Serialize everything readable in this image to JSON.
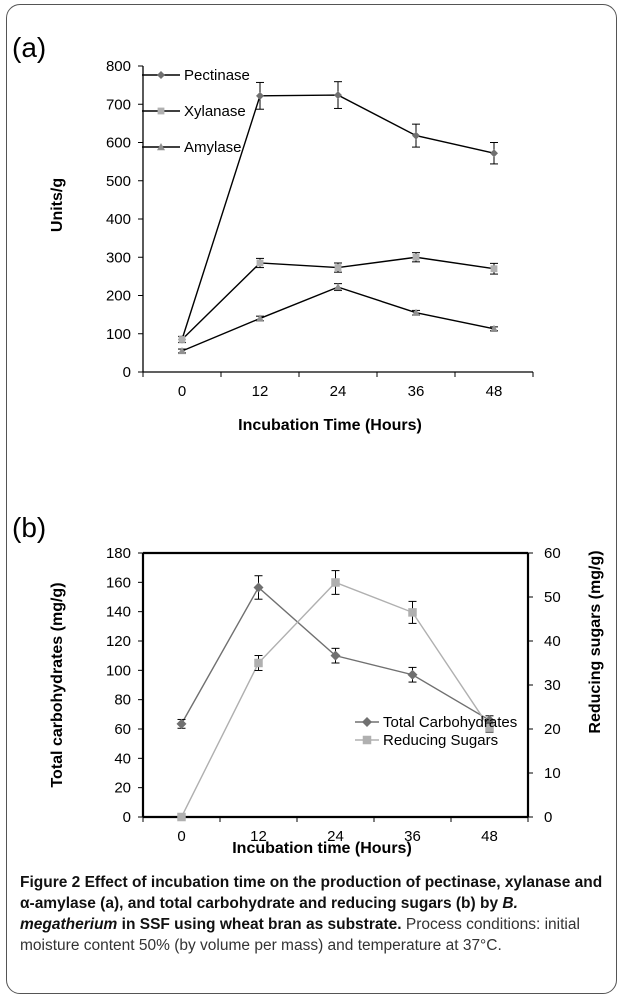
{
  "chart_data": [
    {
      "panel_label": "(a)",
      "type": "line",
      "xlabel": "Incubation Time (Hours)",
      "ylabel": "Units/g",
      "x": [
        0,
        12,
        24,
        36,
        48
      ],
      "ylim": [
        0,
        800
      ],
      "yticks": [
        0,
        100,
        200,
        300,
        400,
        500,
        600,
        700,
        800
      ],
      "legend_position": "top-left",
      "grid": false,
      "series": [
        {
          "name": "Pectinase",
          "marker": "diamond",
          "color": "#707070",
          "values": [
            85,
            722,
            724,
            618,
            572
          ],
          "errors": [
            8,
            35,
            35,
            30,
            28
          ]
        },
        {
          "name": "Xylanase",
          "marker": "square",
          "color": "#b0b0b0",
          "values": [
            85,
            285,
            273,
            300,
            270
          ],
          "errors": [
            8,
            12,
            12,
            12,
            14
          ]
        },
        {
          "name": "Amylase",
          "marker": "triangle",
          "color": "#909090",
          "values": [
            55,
            140,
            222,
            155,
            113
          ],
          "errors": [
            5,
            6,
            9,
            6,
            5
          ]
        }
      ]
    },
    {
      "panel_label": "(b)",
      "type": "line",
      "xlabel": "Incubation time (Hours)",
      "ylabel": "Total carbohydrates (mg/g)",
      "ylabel_right": "Reducing sugars (mg/g)",
      "x": [
        0,
        12,
        24,
        36,
        48
      ],
      "ylim": [
        0,
        180
      ],
      "yticks": [
        0,
        20,
        40,
        60,
        80,
        100,
        120,
        140,
        160,
        180
      ],
      "ylim_right": [
        0,
        60
      ],
      "yticks_right": [
        0,
        10,
        20,
        30,
        40,
        50,
        60
      ],
      "legend_position": "bottom-right",
      "grid": false,
      "series": [
        {
          "name": "Total Carbohydrates",
          "axis": "left",
          "marker": "diamond",
          "color": "#707070",
          "values": [
            63.5,
            156.5,
            110,
            97,
            66
          ],
          "errors": [
            3,
            8,
            5,
            5,
            3
          ]
        },
        {
          "name": "Reducing Sugars",
          "axis": "right",
          "marker": "square",
          "color": "#b0b0b0",
          "values": [
            0,
            35,
            53.3,
            46.5,
            20.3
          ],
          "errors": [
            0,
            1.7,
            2.7,
            2.5,
            1.0
          ]
        }
      ]
    }
  ],
  "caption": {
    "head_prefix": "Figure 2 Effect of incubation time on the production of pectinase, xylanase and α-amylase (a), and total carbohydrate and reducing sugars (b) by ",
    "head_species": "B. megatherium",
    "head_suffix": " in SSF using wheat bran as substrate.",
    "body": " Process conditions: initial moisture content 50% (by volume per mass) and temperature at 37°C."
  }
}
